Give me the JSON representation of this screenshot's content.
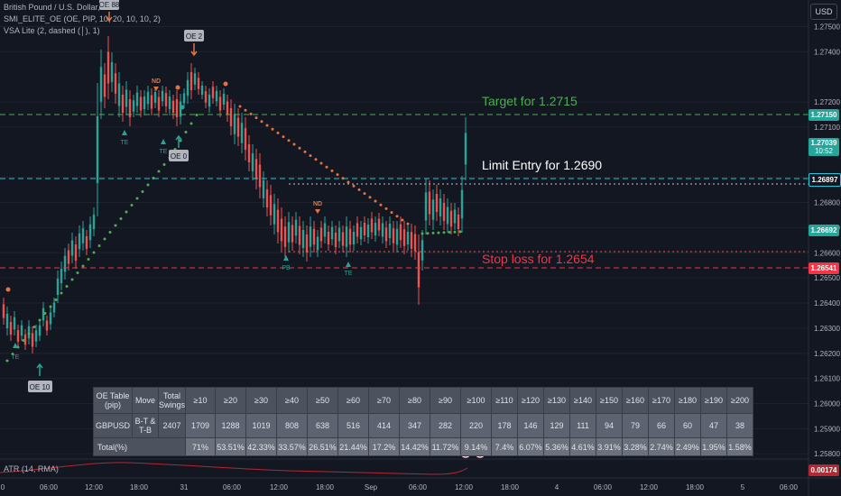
{
  "legend": {
    "symbol_line": "British Pound / U.S. Dollar, 1h",
    "indicator_1": "SMI_ELITE_OE (OE, PIP, 10, 20, 10, 10, 2)",
    "indicator_2": "VSA Lite (2, dashed (│), 1)"
  },
  "currency_button": "USD",
  "y_axis": {
    "ticks": [
      "1.27500",
      "1.27400",
      "1.27200",
      "1.27100",
      "1.26900",
      "1.26800",
      "1.26700",
      "1.26600",
      "1.26500",
      "1.26400",
      "1.26300",
      "1.26200",
      "1.26100",
      "1.26000",
      "1.25900",
      "1.25800"
    ]
  },
  "x_axis": {
    "ticks": [
      "0",
      "06:00",
      "12:00",
      "18:00",
      "31",
      "06:00",
      "12:00",
      "18:00",
      "Sep",
      "06:00",
      "12:00",
      "18:00",
      "4",
      "06:00",
      "12:00",
      "18:00",
      "5",
      "06:00"
    ]
  },
  "price_tags": {
    "target": "1.27150",
    "current": "1.27039",
    "countdown": "10:52",
    "limit": "1.26897",
    "green": "1.26692",
    "stop": "1.26541",
    "atr": "0.00174"
  },
  "annotations": {
    "target": "Target for 1.2715",
    "limit": "Limit Entry for 1.2690",
    "stop": "Stop loss for 1.2654"
  },
  "chart_markers": {
    "oe_88": "OE 88",
    "oe_2": "OE 2",
    "oe_0": "OE 0",
    "oe_10": "OE 10",
    "nd_1": "ND",
    "nd_2": "ND",
    "te_1": "TE",
    "te_2": "TE",
    "te_3": "TE",
    "te_4": "TE",
    "pb": "PB"
  },
  "atr_label": "ATR (14, RMA)",
  "oe_table": {
    "corner": "OE Table (pip)",
    "move_hdr": "Move",
    "total_hdr": "Total Swings",
    "thresholds": [
      "≥10",
      "≥20",
      "≥30",
      "≥40",
      "≥50",
      "≥60",
      "≥70",
      "≥80",
      "≥90",
      "≥100",
      "≥110",
      "≥120",
      "≥130",
      "≥140",
      "≥150",
      "≥160",
      "≥170",
      "≥180",
      "≥190",
      "≥200"
    ],
    "pair": "GBPUSD",
    "move": "B-T & T-B",
    "total": "2407",
    "counts": [
      "1709",
      "1288",
      "1019",
      "808",
      "638",
      "516",
      "414",
      "347",
      "282",
      "220",
      "178",
      "146",
      "129",
      "111",
      "94",
      "79",
      "66",
      "60",
      "47",
      "38"
    ],
    "pct_label": "Total(%)",
    "percents": [
      "71%",
      "53.51%",
      "42.33%",
      "33.57%",
      "26.51%",
      "21.44%",
      "17.2%",
      "14.42%",
      "11.72%",
      "9.14%",
      "7.4%",
      "6.07%",
      "5.36%",
      "4.61%",
      "3.91%",
      "3.28%",
      "2.74%",
      "2.49%",
      "1.95%",
      "1.58%"
    ]
  },
  "colors": {
    "background": "#131722",
    "up_candle": "#26a69a",
    "down_candle": "#ef5350",
    "target_green": "#4caf50",
    "limit_cyan": "#26c6da",
    "stop_red": "#f23645",
    "sar_green": "#4caf50",
    "sar_orange": "#e57340"
  }
}
